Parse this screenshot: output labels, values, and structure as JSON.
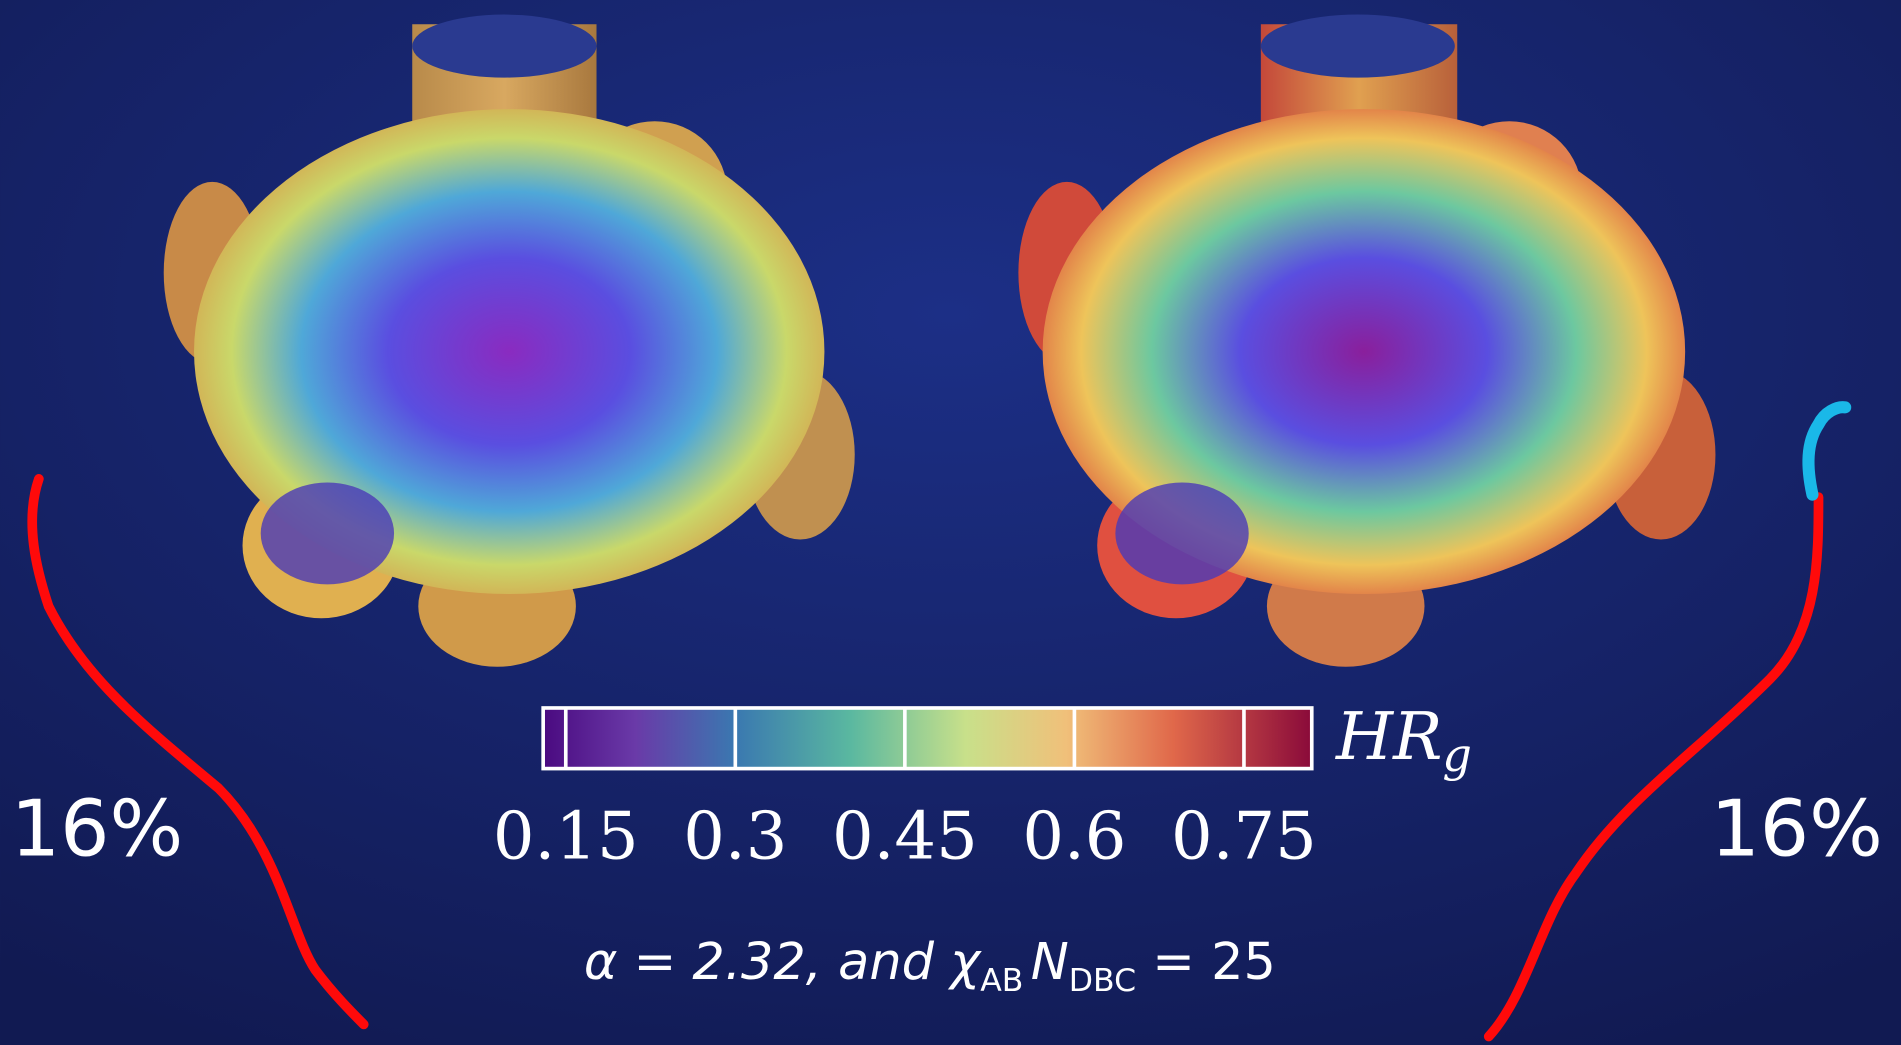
{
  "colorbar": {
    "lim": [
      0.13,
      0.81
    ],
    "ticks": [
      0.15,
      0.3,
      0.45,
      0.6,
      0.75
    ],
    "label": {
      "main": "HR",
      "sub": "g"
    }
  },
  "left_label": "16%",
  "right_label": "16%",
  "caption": {
    "alpha": "α = 2.32, and ",
    "chi": "χ",
    "chi_sub": "AB",
    "n": "N",
    "n_sub": "DBC",
    "tail": " = 25"
  }
}
